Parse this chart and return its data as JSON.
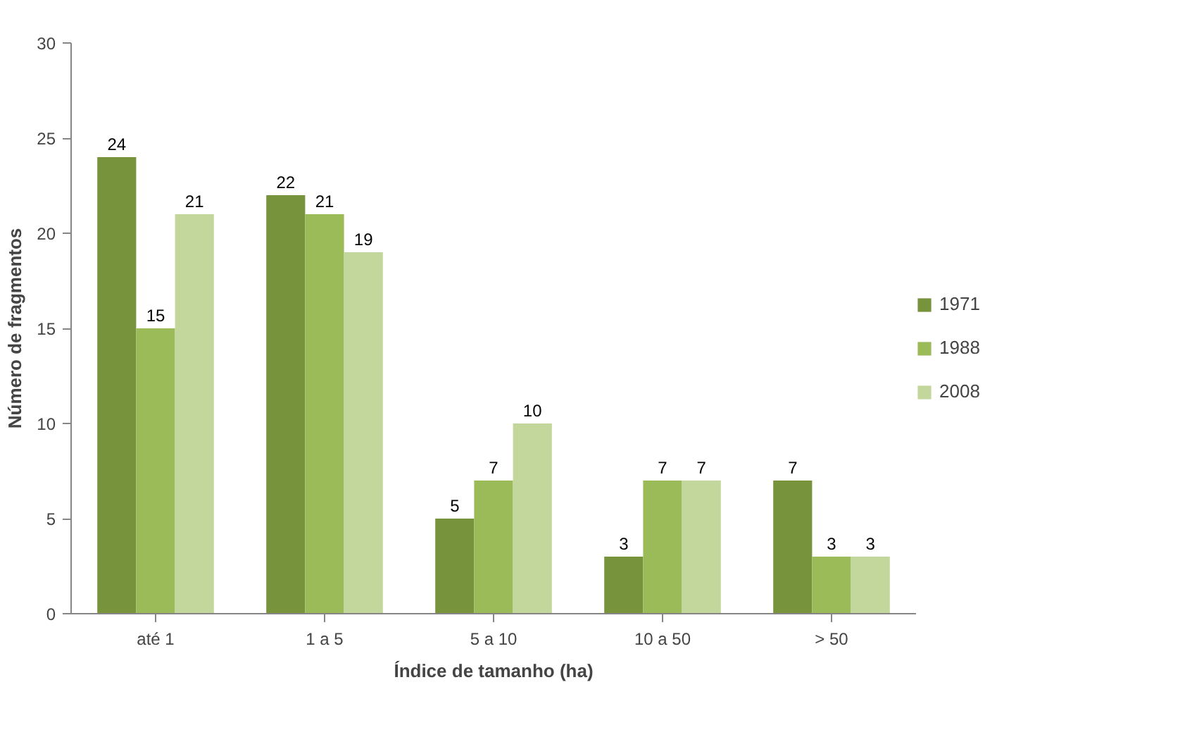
{
  "chart_data": {
    "type": "bar",
    "xlabel": "Índice de tamanho (ha)",
    "ylabel": "Número de fragmentos",
    "categories": [
      "até 1",
      "1 a 5",
      "5 a 10",
      "10 a 50",
      "> 50"
    ],
    "series": [
      {
        "name": "1971",
        "color": "#77933c",
        "values": [
          24,
          22,
          5,
          3,
          7
        ]
      },
      {
        "name": "1988",
        "color": "#9bbb59",
        "values": [
          15,
          21,
          7,
          7,
          3
        ]
      },
      {
        "name": "2008",
        "color": "#c3d69b",
        "values": [
          21,
          19,
          10,
          7,
          3
        ]
      }
    ],
    "ylim": [
      0,
      30
    ],
    "yticks": [
      0,
      5,
      10,
      15,
      20,
      25,
      30
    ],
    "grid": false,
    "legend": "right",
    "data_labels": true
  }
}
